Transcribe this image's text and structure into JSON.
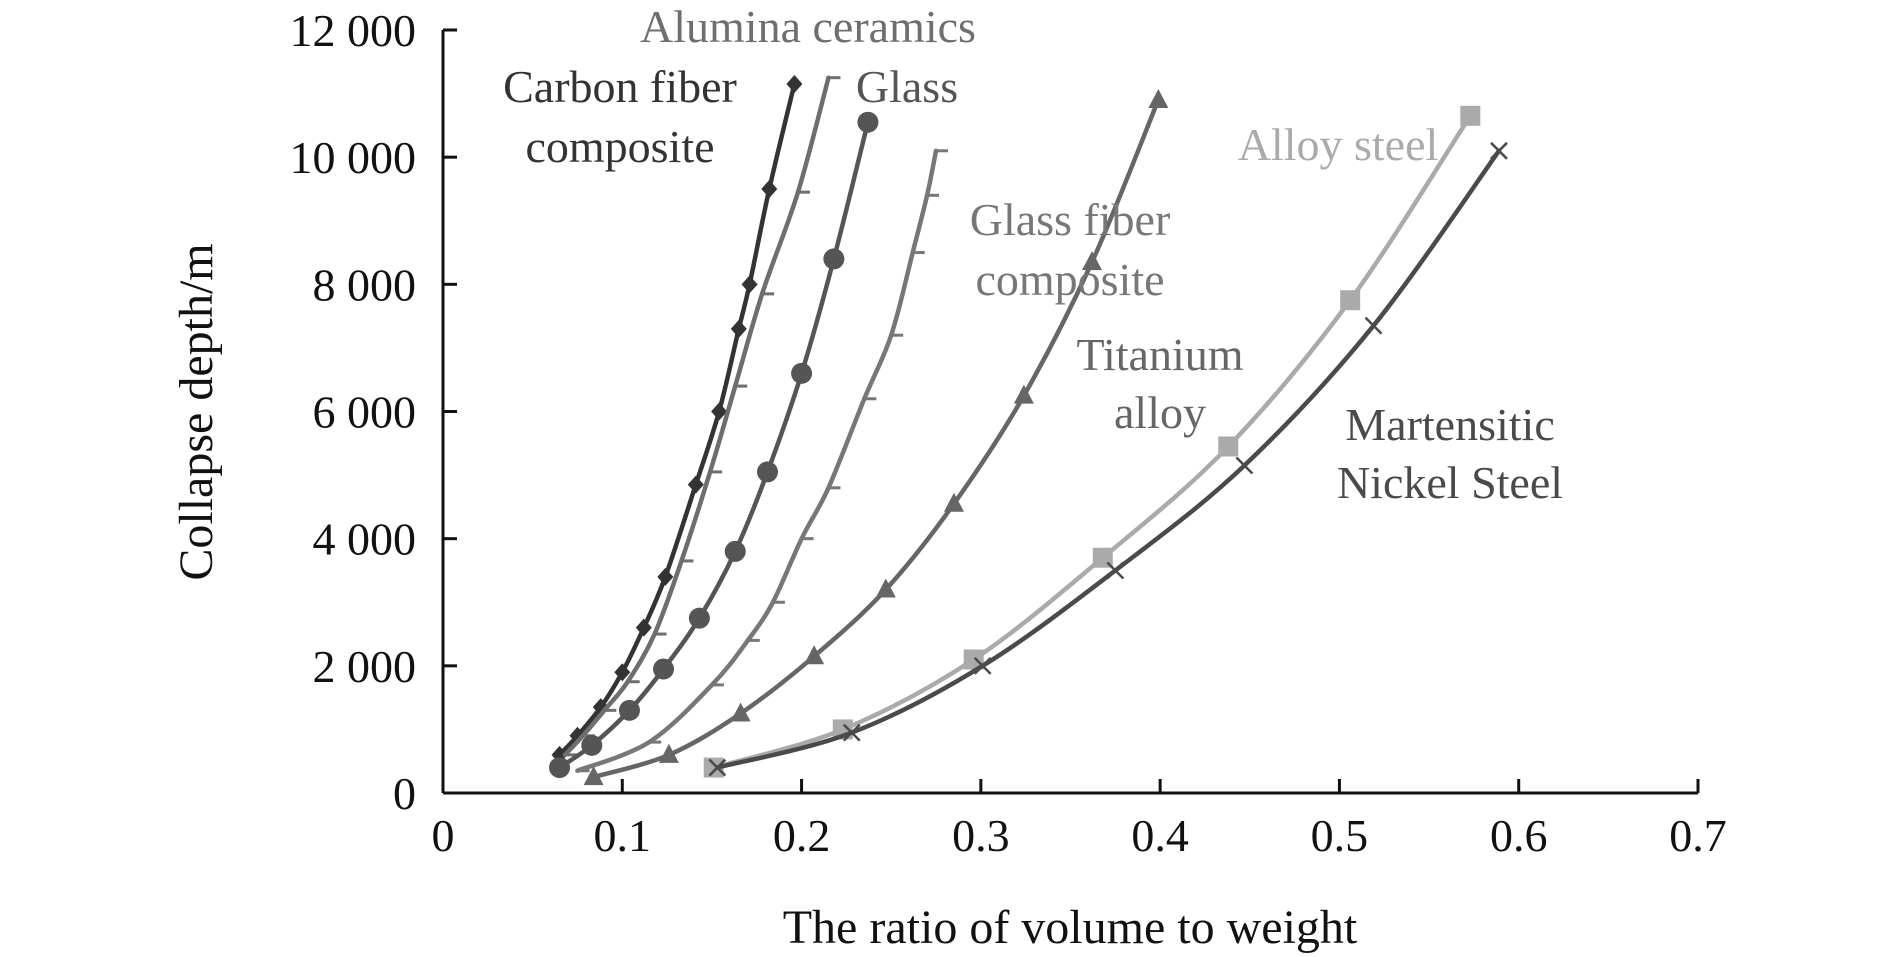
{
  "chart_data": {
    "type": "line",
    "title": "",
    "xlabel": "The ratio of volume to weight",
    "ylabel": "Collapse depth/m",
    "xlim": [
      0,
      0.7
    ],
    "ylim": [
      0,
      12000
    ],
    "grid": false,
    "legend": "inline labels",
    "x_ticks": [
      {
        "value": 0,
        "label": "0"
      },
      {
        "value": 0.1,
        "label": "0.1"
      },
      {
        "value": 0.2,
        "label": "0.2"
      },
      {
        "value": 0.3,
        "label": "0.3"
      },
      {
        "value": 0.4,
        "label": "0.4"
      },
      {
        "value": 0.5,
        "label": "0.5"
      },
      {
        "value": 0.6,
        "label": "0.6"
      },
      {
        "value": 0.7,
        "label": "0.7"
      }
    ],
    "y_ticks": [
      {
        "value": 0,
        "label": "0"
      },
      {
        "value": 2000,
        "label": "2 000"
      },
      {
        "value": 4000,
        "label": "4 000"
      },
      {
        "value": 6000,
        "label": "6 000"
      },
      {
        "value": 8000,
        "label": "8 000"
      },
      {
        "value": 10000,
        "label": "10 000"
      },
      {
        "value": 12000,
        "label": "12 000"
      }
    ],
    "series": [
      {
        "name": "Carbon fiber composite",
        "label_lines": [
          "Carbon fiber",
          "composite"
        ],
        "color": "#333333",
        "marker": "diamond",
        "x": [
          0.065,
          0.075,
          0.088,
          0.1,
          0.112,
          0.124,
          0.141,
          0.154,
          0.165,
          0.171,
          0.182,
          0.196
        ],
        "y": [
          600,
          900,
          1350,
          1900,
          2600,
          3400,
          4850,
          6000,
          7300,
          8000,
          9500,
          11150
        ]
      },
      {
        "name": "Alumina ceramics",
        "label_lines": [
          "Alumina ceramics"
        ],
        "color": "#6e6e6e",
        "marker": "dash",
        "x": [
          0.068,
          0.078,
          0.09,
          0.103,
          0.118,
          0.133,
          0.149,
          0.163,
          0.178,
          0.198,
          0.215
        ],
        "y": [
          600,
          900,
          1300,
          1750,
          2500,
          3650,
          5050,
          6400,
          7850,
          9450,
          11250
        ]
      },
      {
        "name": "Glass",
        "label_lines": [
          "Glass"
        ],
        "color": "#555555",
        "marker": "circle",
        "x": [
          0.065,
          0.083,
          0.104,
          0.123,
          0.143,
          0.163,
          0.181,
          0.2,
          0.218,
          0.237
        ],
        "y": [
          400,
          750,
          1300,
          1950,
          2750,
          3800,
          5050,
          6600,
          8400,
          10550
        ]
      },
      {
        "name": "Glass fiber composite",
        "label_lines": [
          "Glass fiber",
          "composite"
        ],
        "color": "#777777",
        "marker": "dash",
        "x": [
          0.075,
          0.115,
          0.15,
          0.17,
          0.184,
          0.2,
          0.215,
          0.235,
          0.25,
          0.262,
          0.27,
          0.275
        ],
        "y": [
          350,
          800,
          1700,
          2400,
          3000,
          4000,
          4800,
          6200,
          7200,
          8500,
          9400,
          10100
        ]
      },
      {
        "name": "Titanium alloy",
        "label_lines": [
          "Titanium",
          "alloy"
        ],
        "color": "#666666",
        "marker": "triangle",
        "x": [
          0.084,
          0.126,
          0.166,
          0.207,
          0.247,
          0.285,
          0.324,
          0.362,
          0.399
        ],
        "y": [
          250,
          600,
          1250,
          2150,
          3200,
          4550,
          6250,
          8350,
          10900
        ]
      },
      {
        "name": "Alloy steel",
        "label_lines": [
          "Alloy steel"
        ],
        "color": "#aaaaaa",
        "marker": "square",
        "x": [
          0.151,
          0.223,
          0.296,
          0.368,
          0.438,
          0.506,
          0.573
        ],
        "y": [
          400,
          1000,
          2100,
          3700,
          5450,
          7750,
          10650
        ]
      },
      {
        "name": "Martensitic Nickel Steel",
        "label_lines": [
          "Martensitic",
          "Nickel Steel"
        ],
        "color": "#4a4a4a",
        "marker": "cross",
        "x": [
          0.153,
          0.228,
          0.301,
          0.375,
          0.447,
          0.519,
          0.589
        ],
        "y": [
          400,
          950,
          2000,
          3500,
          5150,
          7350,
          10100
        ]
      }
    ]
  }
}
